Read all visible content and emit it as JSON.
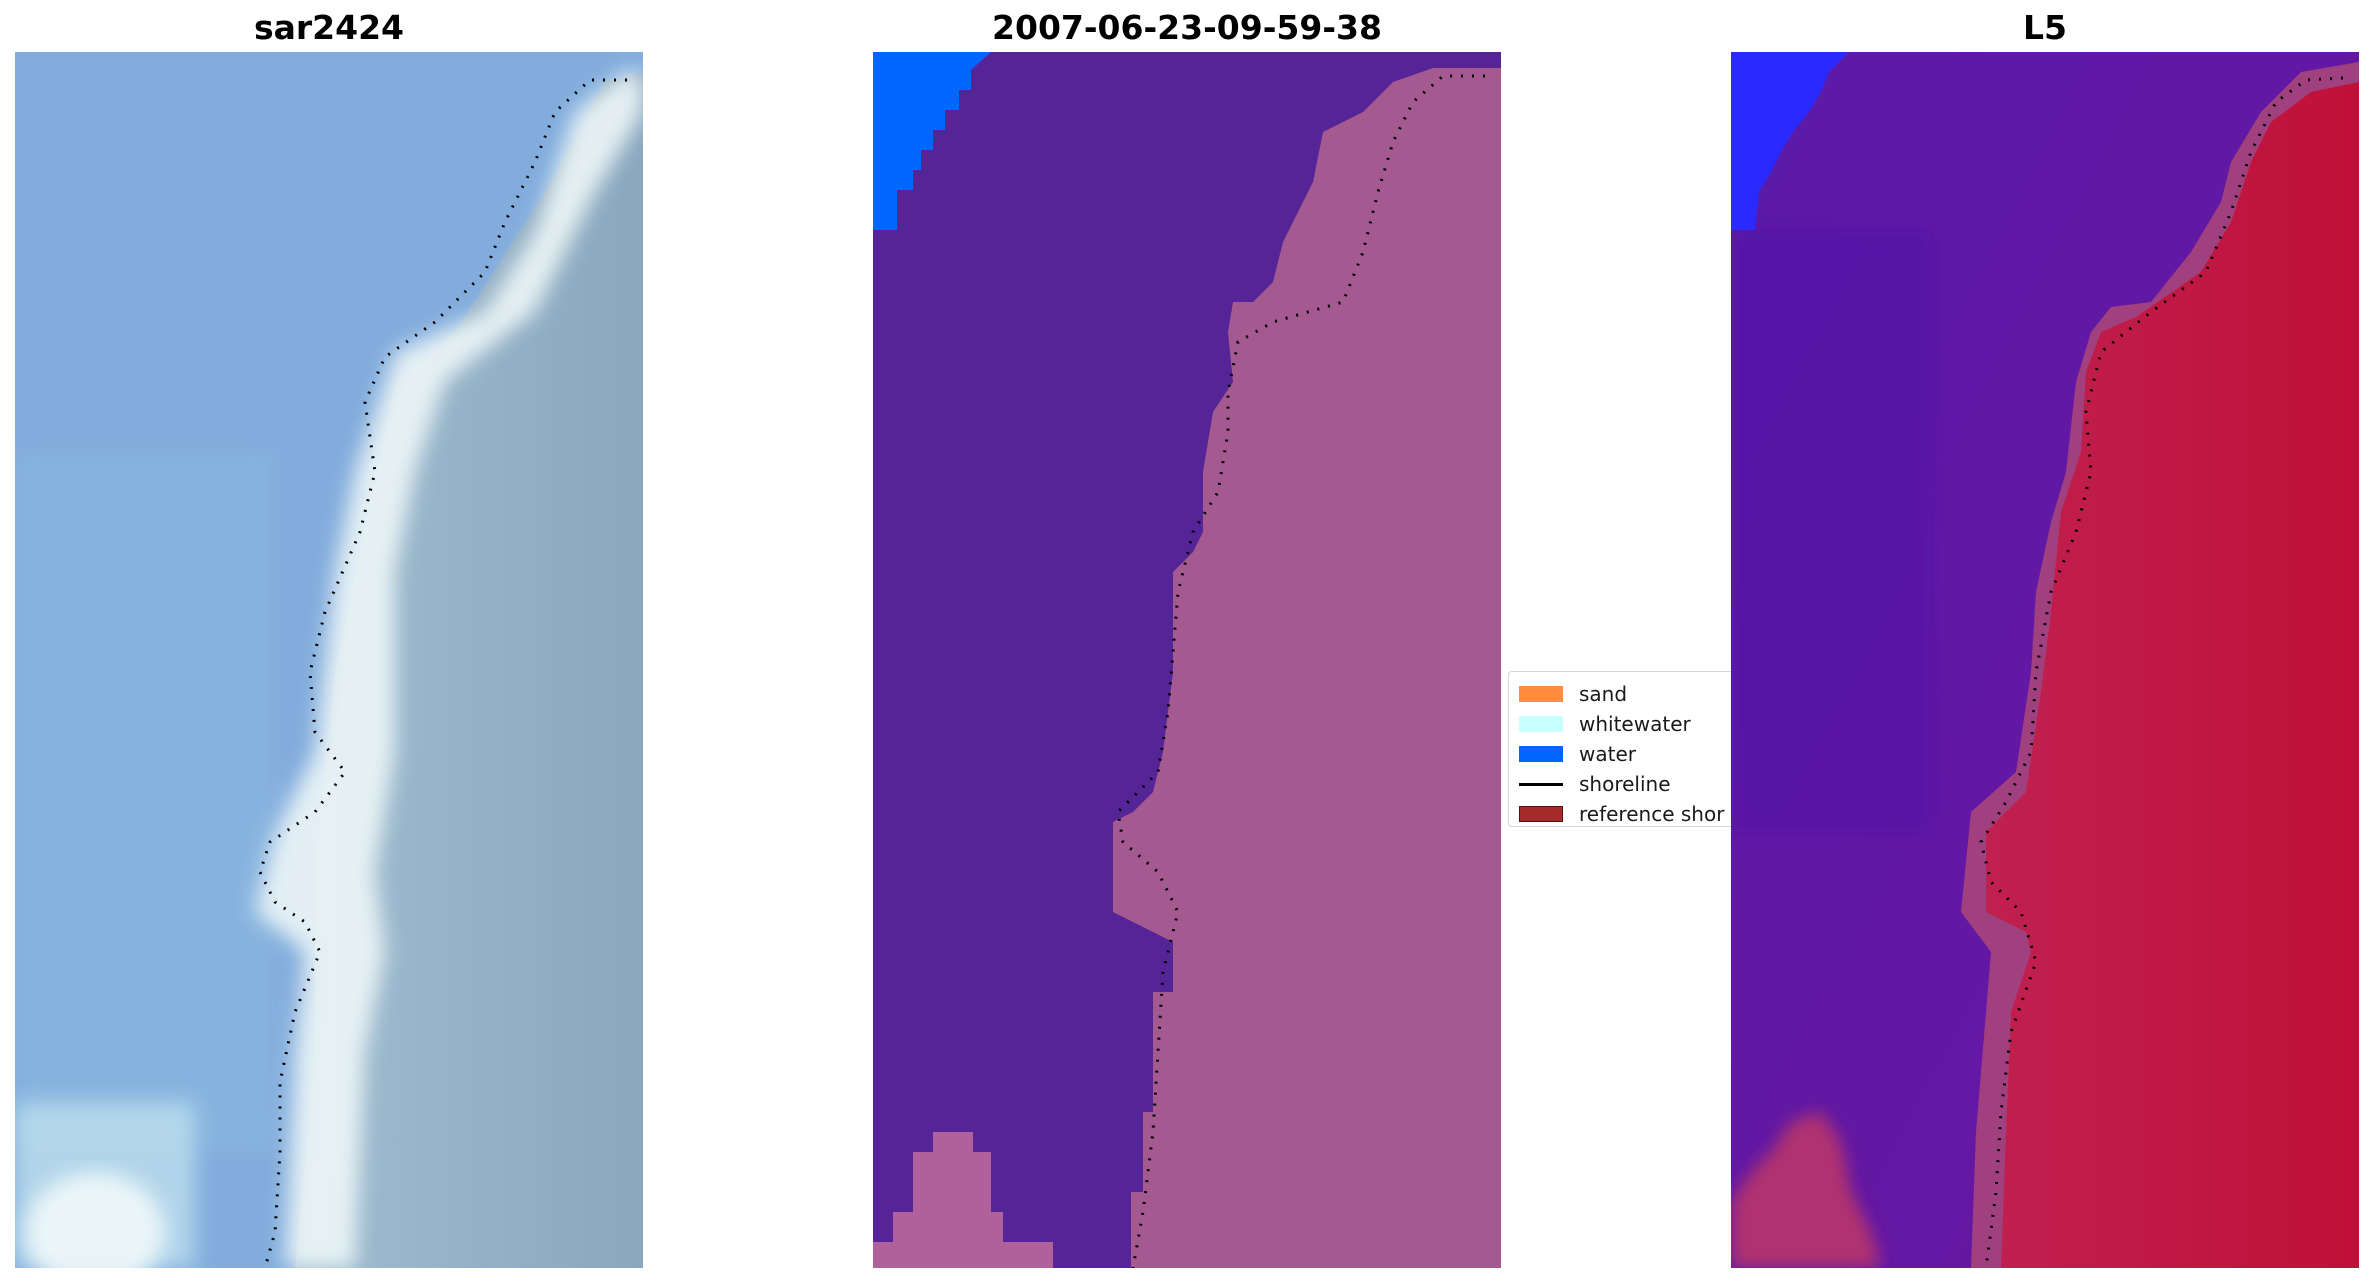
{
  "panels": [
    {
      "title": "sar2424"
    },
    {
      "title": "2007-06-23-09-59-38"
    },
    {
      "title": "L5"
    }
  ],
  "legend": {
    "items": [
      {
        "label": "sand",
        "kind": "patch",
        "color": "#ff8c40"
      },
      {
        "label": "whitewater",
        "kind": "patch",
        "color": "#c8ffff"
      },
      {
        "label": "water",
        "kind": "patch",
        "color": "#0066ff"
      },
      {
        "label": "shoreline",
        "kind": "line",
        "color": "#000000"
      },
      {
        "label": "reference shor",
        "kind": "patch",
        "color": "#a52a2a",
        "edge": "#5a1010"
      }
    ]
  },
  "colors": {
    "sar_water": "#7fa9d8",
    "sar_land": "#8ba7bd",
    "sar_whitewater": "#f2f8f8",
    "class_water": "#0066ff",
    "class_ocean": "#552597",
    "class_land": "#a45991",
    "l5_water": "#2a2aff",
    "l5_ocean": "#5a0fa0",
    "l5_land": "#c0143c"
  }
}
